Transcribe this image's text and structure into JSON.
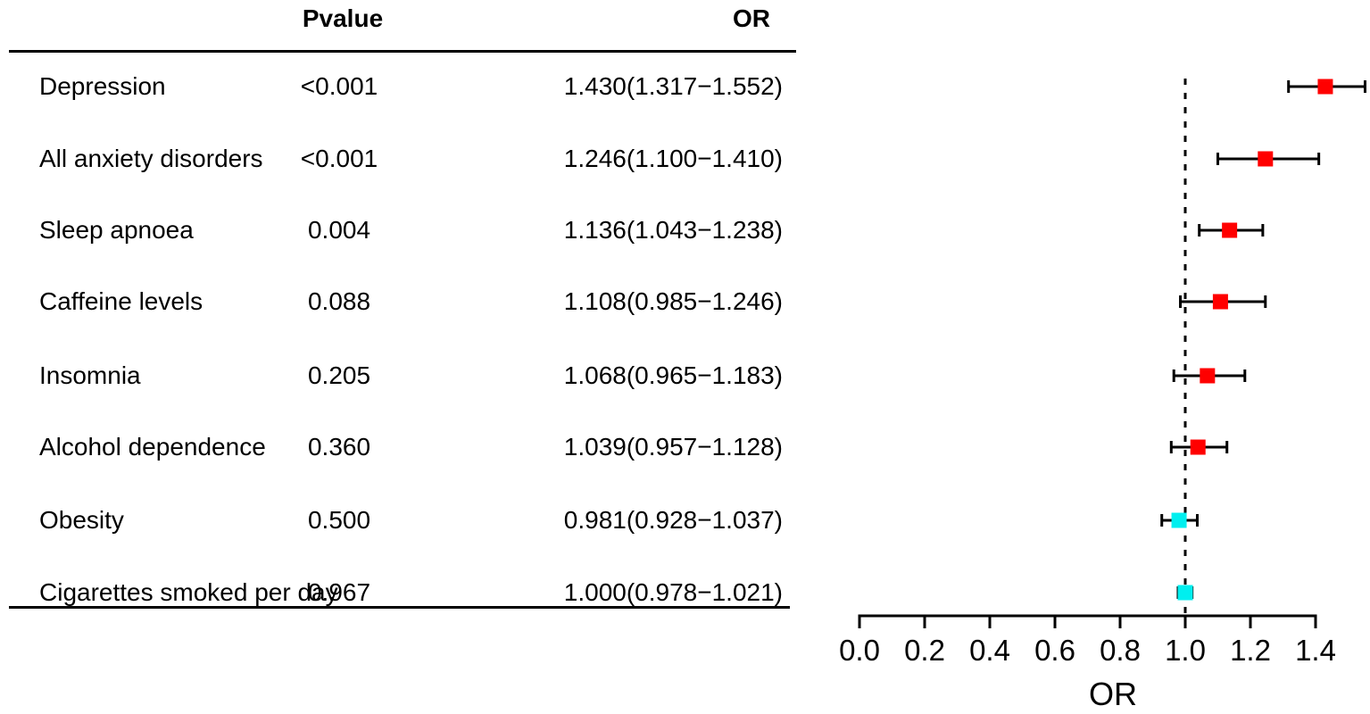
{
  "table": {
    "headers": {
      "pvalue": "Pvalue",
      "or": "OR"
    },
    "rows": [
      {
        "label": "Depression",
        "pvalue": "<0.001",
        "or_ci": "1.430(1.317−1.552)"
      },
      {
        "label": "All anxiety disorders",
        "pvalue": "<0.001",
        "or_ci": "1.246(1.100−1.410)"
      },
      {
        "label": "Sleep apnoea",
        "pvalue": "0.004",
        "or_ci": "1.136(1.043−1.238)"
      },
      {
        "label": "Caffeine levels",
        "pvalue": "0.088",
        "or_ci": "1.108(0.985−1.246)"
      },
      {
        "label": "Insomnia",
        "pvalue": "0.205",
        "or_ci": "1.068(0.965−1.183)"
      },
      {
        "label": "Alcohol dependence",
        "pvalue": "0.360",
        "or_ci": "1.039(0.957−1.128)"
      },
      {
        "label": "Obesity",
        "pvalue": "0.500",
        "or_ci": "0.981(0.928−1.037)"
      },
      {
        "label": "Cigarettes smoked per day",
        "pvalue": "0.967",
        "or_ci": "1.000(0.978−1.021)"
      }
    ]
  },
  "chart_data": {
    "type": "scatter",
    "subtype": "forest-plot",
    "title": "",
    "xlabel": "OR",
    "xlim": [
      0.0,
      1.4
    ],
    "x_ticks": [
      0.0,
      0.2,
      0.4,
      0.6,
      0.8,
      1.0,
      1.2,
      1.4
    ],
    "reference_line_x": 1.0,
    "grid": false,
    "legend": false,
    "points": [
      {
        "label": "Depression",
        "or": 1.43,
        "ci_low": 1.317,
        "ci_high": 1.552,
        "color": "#FF0000"
      },
      {
        "label": "All anxiety disorders",
        "or": 1.246,
        "ci_low": 1.1,
        "ci_high": 1.41,
        "color": "#FF0000"
      },
      {
        "label": "Sleep apnoea",
        "or": 1.136,
        "ci_low": 1.043,
        "ci_high": 1.238,
        "color": "#FF0000"
      },
      {
        "label": "Caffeine levels",
        "or": 1.108,
        "ci_low": 0.985,
        "ci_high": 1.246,
        "color": "#FF0000"
      },
      {
        "label": "Insomnia",
        "or": 1.068,
        "ci_low": 0.965,
        "ci_high": 1.183,
        "color": "#FF0000"
      },
      {
        "label": "Alcohol dependence",
        "or": 1.039,
        "ci_low": 0.957,
        "ci_high": 1.128,
        "color": "#FF0000"
      },
      {
        "label": "Obesity",
        "or": 0.981,
        "ci_low": 0.928,
        "ci_high": 1.037,
        "color": "#00EFEF"
      },
      {
        "label": "Cigarettes smoked per day",
        "or": 1.0,
        "ci_low": 0.978,
        "ci_high": 1.021,
        "color": "#00EFEF"
      }
    ]
  },
  "colors": {
    "significant_marker": "#FF0000",
    "nonsignificant_marker": "#00EFEF",
    "line": "#000000",
    "background": "#FFFFFF"
  }
}
